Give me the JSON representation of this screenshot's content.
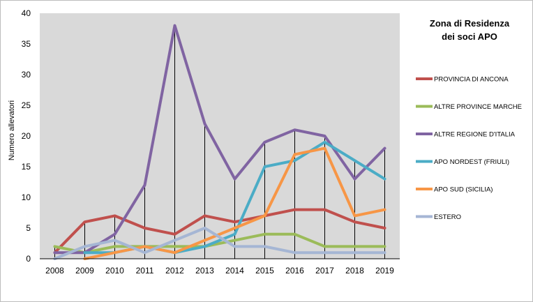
{
  "chart_data": {
    "type": "line",
    "title": "Zona di Residenza dei soci APO",
    "title_lines": [
      "Zona di Residenza",
      "dei soci APO"
    ],
    "xlabel": "",
    "ylabel": "Numero allevatori",
    "ylim": [
      0,
      40
    ],
    "yticks": [
      0,
      5,
      10,
      15,
      20,
      25,
      30,
      35,
      40
    ],
    "categories": [
      "2008",
      "2009",
      "2010",
      "2011",
      "2012",
      "2013",
      "2014",
      "2015",
      "2016",
      "2017",
      "2018",
      "2019"
    ],
    "grid": "vertical drop lines per year",
    "legend_position": "right",
    "plot_background": "#d9d9d9",
    "series": [
      {
        "name": "PROVINCIA DI ANCONA",
        "color": "#c0504d",
        "values": [
          1,
          6,
          7,
          5,
          4,
          7,
          6,
          7,
          8,
          8,
          6,
          5
        ]
      },
      {
        "name": "ALTRE PROVINCE  MARCHE",
        "color": "#9bbb59",
        "values": [
          2,
          1,
          2,
          2,
          2,
          2,
          3,
          4,
          4,
          2,
          2,
          2
        ]
      },
      {
        "name": "ALTRE REGIONE D'ITALIA",
        "color": "#8064a2",
        "values": [
          1,
          1,
          4,
          12,
          38,
          22,
          13,
          19,
          21,
          20,
          13,
          18
        ]
      },
      {
        "name": "APO NORDEST  (FRIULI)",
        "color": "#4bacc6",
        "values": [
          null,
          1,
          1,
          2,
          1,
          2,
          4,
          15,
          16,
          19,
          16,
          13
        ]
      },
      {
        "name": "APO SUD  (SICILIA)",
        "color": "#f79646",
        "values": [
          null,
          0,
          1,
          2,
          1,
          3,
          5,
          7,
          17,
          18,
          7,
          8
        ]
      },
      {
        "name": "ESTERO",
        "color": "#a5b6d4",
        "values": [
          0,
          2,
          3,
          1,
          3,
          5,
          2,
          2,
          1,
          1,
          1,
          1
        ]
      }
    ]
  }
}
